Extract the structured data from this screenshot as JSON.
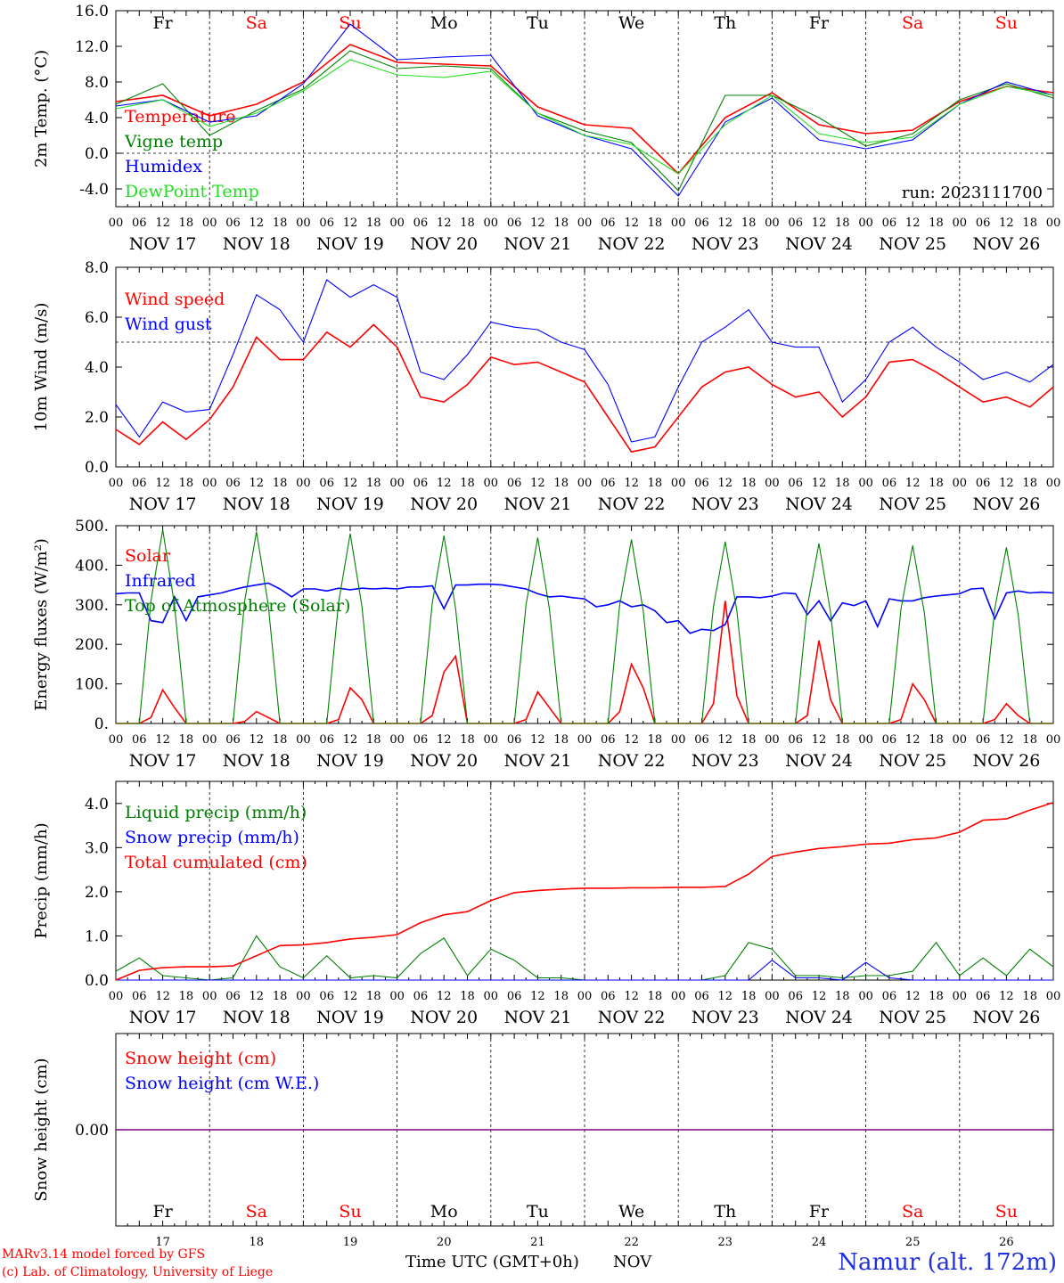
{
  "colors": {
    "red": "#ff0000",
    "green": "#008000",
    "blue": "#0000ff",
    "lightgreen": "#22dd22",
    "purple": "#800080",
    "weekend": "#ff0000",
    "weekday": "#000000"
  },
  "days": [
    {
      "dow": "Fr",
      "dom": "17",
      "date": "NOV 17",
      "weekend": false
    },
    {
      "dow": "Sa",
      "dom": "18",
      "date": "NOV 18",
      "weekend": true
    },
    {
      "dow": "Su",
      "dom": "19",
      "date": "NOV 19",
      "weekend": true
    },
    {
      "dow": "Mo",
      "dom": "20",
      "date": "NOV 20",
      "weekend": false
    },
    {
      "dow": "Tu",
      "dom": "21",
      "date": "NOV 21",
      "weekend": false
    },
    {
      "dow": "We",
      "dom": "22",
      "date": "NOV 22",
      "weekend": false
    },
    {
      "dow": "Th",
      "dom": "23",
      "date": "NOV 23",
      "weekend": false
    },
    {
      "dow": "Fr",
      "dom": "24",
      "date": "NOV 24",
      "weekend": false
    },
    {
      "dow": "Sa",
      "dom": "25",
      "date": "NOV 25",
      "weekend": true
    },
    {
      "dow": "Su",
      "dom": "26",
      "date": "NOV 26",
      "weekend": true
    }
  ],
  "hour_labels": [
    "00",
    "06",
    "12",
    "18"
  ],
  "footer": {
    "credit_line1": "MARv3.14 model forced by GFS",
    "credit_line2": "(c) Lab. of Climatology, University of Liege",
    "x_title": "Time UTC (GMT+0h)",
    "x_unit": "NOV",
    "station": "Namur (alt. 172m)"
  },
  "chart_data": [
    {
      "type": "line",
      "ylabel": "2m Temp. (°C)",
      "ylim": [
        -6,
        16
      ],
      "yticks": [
        -4,
        0,
        4,
        8,
        12,
        16
      ],
      "ytick_labels": [
        "-4.0",
        "0.0",
        "4.0",
        "8.0",
        "12.0",
        "16.0"
      ],
      "ref_line": 0,
      "show_day_names": true,
      "annotation": "run: 2023111700",
      "x_hours": [
        0,
        12,
        24,
        36,
        48,
        60,
        72,
        84,
        96,
        108,
        120,
        132,
        144,
        156,
        168,
        180,
        192,
        204,
        216,
        228,
        240
      ],
      "series": [
        {
          "name": "Temperature",
          "color": "red",
          "values": [
            5.8,
            6.5,
            4.2,
            5.5,
            8.0,
            12.2,
            10.2,
            10.0,
            9.8,
            5.2,
            3.2,
            2.8,
            -2.3,
            4.0,
            6.8,
            3.2,
            2.2,
            2.6,
            5.8,
            7.5,
            6.8
          ]
        },
        {
          "name": "Vigne temp",
          "color": "green",
          "values": [
            5.5,
            7.8,
            2.0,
            4.8,
            7.2,
            11.5,
            9.5,
            9.8,
            9.5,
            4.5,
            2.5,
            1.2,
            -4.2,
            6.5,
            6.5,
            4.0,
            0.8,
            2.2,
            6.0,
            7.8,
            6.2
          ]
        },
        {
          "name": "Humidex",
          "color": "blue",
          "values": [
            5.3,
            6.0,
            3.5,
            4.2,
            7.8,
            14.5,
            10.5,
            10.8,
            11.0,
            4.2,
            2.0,
            0.5,
            -4.8,
            3.5,
            6.2,
            1.5,
            0.5,
            1.5,
            5.5,
            8.0,
            6.5
          ]
        },
        {
          "name": "DewPoint Temp",
          "color": "lightgreen",
          "values": [
            5.0,
            6.0,
            3.0,
            4.5,
            7.0,
            10.5,
            8.8,
            8.5,
            9.2,
            4.5,
            2.0,
            1.0,
            -2.3,
            3.2,
            6.5,
            2.2,
            1.2,
            1.8,
            5.5,
            7.5,
            6.5
          ]
        }
      ]
    },
    {
      "type": "line",
      "ylabel": "10m Wind (m/s)",
      "ylim": [
        0,
        8
      ],
      "yticks": [
        0,
        2,
        4,
        6,
        8
      ],
      "ytick_labels": [
        "0.0",
        "2.0",
        "4.0",
        "6.0",
        "8.0"
      ],
      "ref_line": 5,
      "show_day_names": false,
      "annotation": "",
      "x_hours": [
        0,
        6,
        12,
        18,
        24,
        30,
        36,
        42,
        48,
        54,
        60,
        66,
        72,
        78,
        84,
        90,
        96,
        102,
        108,
        114,
        120,
        126,
        132,
        138,
        144,
        150,
        156,
        162,
        168,
        174,
        180,
        186,
        192,
        198,
        204,
        210,
        216,
        222,
        228,
        234,
        240
      ],
      "series": [
        {
          "name": "Wind speed",
          "color": "red",
          "values": [
            1.5,
            0.9,
            1.8,
            1.1,
            1.9,
            3.2,
            5.2,
            4.3,
            4.3,
            5.4,
            4.8,
            5.7,
            4.8,
            2.8,
            2.6,
            3.3,
            4.4,
            4.1,
            4.2,
            3.8,
            3.4,
            2.0,
            0.6,
            0.8,
            2.0,
            3.2,
            3.8,
            4.0,
            3.3,
            2.8,
            3.0,
            2.0,
            2.8,
            4.2,
            4.3,
            3.8,
            3.2,
            2.6,
            2.8,
            2.4,
            3.2
          ]
        },
        {
          "name": "Wind gust",
          "color": "blue",
          "values": [
            2.5,
            1.2,
            2.6,
            2.2,
            2.3,
            4.5,
            6.9,
            6.3,
            5.0,
            7.5,
            6.8,
            7.3,
            6.8,
            3.8,
            3.5,
            4.5,
            5.8,
            5.6,
            5.5,
            5.0,
            4.7,
            3.3,
            1.0,
            1.2,
            3.2,
            5.0,
            5.6,
            6.3,
            5.0,
            4.8,
            4.8,
            2.6,
            3.5,
            5.0,
            5.6,
            4.8,
            4.2,
            3.5,
            3.8,
            3.4,
            4.1
          ]
        }
      ]
    },
    {
      "type": "line",
      "ylabel": "Energy fluxes (W/m²)",
      "ylim": [
        0,
        500
      ],
      "yticks": [
        0,
        100,
        200,
        300,
        400,
        500
      ],
      "ytick_labels": [
        "0.",
        "100.",
        "200.",
        "300.",
        "400.",
        "500."
      ],
      "ref_line": null,
      "show_day_names": false,
      "annotation": "",
      "x_hours": [
        0,
        3,
        6,
        9,
        12,
        15,
        18,
        21,
        24,
        27,
        30,
        33,
        36,
        39,
        42,
        45,
        48,
        51,
        54,
        57,
        60,
        63,
        66,
        69,
        72,
        75,
        78,
        81,
        84,
        87,
        90,
        93,
        96,
        99,
        102,
        105,
        108,
        111,
        114,
        117,
        120,
        123,
        126,
        129,
        132,
        135,
        138,
        141,
        144,
        147,
        150,
        153,
        156,
        159,
        162,
        165,
        168,
        171,
        174,
        177,
        180,
        183,
        186,
        189,
        192,
        195,
        198,
        201,
        204,
        207,
        210,
        213,
        216,
        219,
        222,
        225,
        228,
        231,
        234,
        237,
        240
      ],
      "series": [
        {
          "name": "Solar",
          "color": "red",
          "values": [
            0,
            0,
            0,
            15,
            85,
            40,
            0,
            0,
            0,
            0,
            0,
            5,
            30,
            15,
            0,
            0,
            0,
            0,
            0,
            10,
            90,
            60,
            0,
            0,
            0,
            0,
            0,
            20,
            130,
            170,
            0,
            0,
            0,
            0,
            0,
            10,
            80,
            40,
            0,
            0,
            0,
            0,
            0,
            30,
            150,
            90,
            0,
            0,
            0,
            0,
            0,
            50,
            310,
            70,
            0,
            0,
            0,
            0,
            0,
            20,
            210,
            60,
            0,
            0,
            0,
            0,
            0,
            10,
            100,
            60,
            0,
            0,
            0,
            0,
            0,
            10,
            50,
            20,
            0,
            0,
            0
          ]
        },
        {
          "name": "Infrared",
          "color": "blue",
          "values": [
            328,
            330,
            330,
            260,
            255,
            320,
            260,
            320,
            325,
            330,
            338,
            345,
            350,
            355,
            340,
            320,
            340,
            340,
            335,
            342,
            338,
            342,
            340,
            342,
            340,
            345,
            345,
            348,
            290,
            350,
            350,
            352,
            352,
            350,
            345,
            340,
            328,
            320,
            322,
            318,
            315,
            295,
            300,
            310,
            295,
            300,
            285,
            255,
            260,
            228,
            238,
            235,
            250,
            320,
            320,
            318,
            322,
            330,
            328,
            275,
            310,
            260,
            305,
            298,
            310,
            245,
            315,
            310,
            310,
            318,
            322,
            325,
            328,
            340,
            342,
            265,
            330,
            335,
            330,
            332,
            330
          ]
        },
        {
          "name": "Top of Atmosphere (Solar)",
          "color": "green",
          "values": [
            0,
            0,
            0,
            310,
            490,
            300,
            0,
            0,
            0,
            0,
            0,
            310,
            485,
            300,
            0,
            0,
            0,
            0,
            0,
            305,
            480,
            295,
            0,
            0,
            0,
            0,
            0,
            305,
            475,
            290,
            0,
            0,
            0,
            0,
            0,
            300,
            470,
            290,
            0,
            0,
            0,
            0,
            0,
            300,
            465,
            285,
            0,
            0,
            0,
            0,
            0,
            295,
            460,
            285,
            0,
            0,
            0,
            0,
            0,
            295,
            455,
            280,
            0,
            0,
            0,
            0,
            0,
            290,
            450,
            280,
            0,
            0,
            0,
            0,
            0,
            290,
            445,
            275,
            0,
            0,
            0
          ]
        }
      ]
    },
    {
      "type": "line",
      "ylabel": "Precip (mm/h)",
      "ylim": [
        0,
        4.5
      ],
      "yticks": [
        0,
        1,
        2,
        3,
        4
      ],
      "ytick_labels": [
        "0.0",
        "1.0",
        "2.0",
        "3.0",
        "4.0"
      ],
      "ref_line": null,
      "show_day_names": false,
      "annotation": "",
      "x_hours": [
        0,
        6,
        12,
        18,
        24,
        30,
        36,
        42,
        48,
        54,
        60,
        66,
        72,
        78,
        84,
        90,
        96,
        102,
        108,
        114,
        120,
        126,
        132,
        138,
        144,
        150,
        156,
        162,
        168,
        174,
        180,
        186,
        192,
        198,
        204,
        210,
        216,
        222,
        228,
        234,
        240
      ],
      "series": [
        {
          "name": "Liquid precip (mm/h)",
          "color": "green",
          "values": [
            0.2,
            0.5,
            0.1,
            0.05,
            0,
            0.05,
            1.0,
            0.3,
            0.05,
            0.55,
            0.05,
            0.1,
            0.05,
            0.6,
            0.95,
            0.1,
            0.7,
            0.45,
            0.05,
            0.05,
            0,
            0,
            0,
            0,
            0,
            0,
            0.1,
            0.85,
            0.7,
            0.1,
            0.1,
            0.05,
            0.1,
            0.1,
            0.2,
            0.85,
            0.1,
            0.5,
            0.1,
            0.7,
            0.3
          ]
        },
        {
          "name": "Snow precip (mm/h)",
          "color": "blue",
          "values": [
            0,
            0,
            0,
            0,
            0,
            0,
            0,
            0,
            0,
            0,
            0,
            0,
            0,
            0,
            0,
            0,
            0,
            0,
            0,
            0,
            0,
            0,
            0,
            0,
            0,
            0,
            0,
            0,
            0.45,
            0.05,
            0.05,
            0,
            0.4,
            0.05,
            0,
            0,
            0,
            0,
            0,
            0,
            0
          ]
        },
        {
          "name": "Total cumulated (cm)",
          "color": "red",
          "values": [
            0.0,
            0.22,
            0.28,
            0.3,
            0.3,
            0.32,
            0.55,
            0.78,
            0.8,
            0.85,
            0.93,
            0.97,
            1.03,
            1.3,
            1.48,
            1.55,
            1.8,
            1.98,
            2.03,
            2.06,
            2.08,
            2.08,
            2.09,
            2.09,
            2.1,
            2.1,
            2.12,
            2.4,
            2.8,
            2.9,
            2.98,
            3.02,
            3.08,
            3.1,
            3.18,
            3.22,
            3.35,
            3.62,
            3.65,
            3.85,
            4.02
          ]
        }
      ]
    },
    {
      "type": "line",
      "ylabel": "Snow height (cm)",
      "ylim": [
        -1,
        1
      ],
      "yticks": [
        0
      ],
      "ytick_labels": [
        "0.00"
      ],
      "ref_line": null,
      "show_day_names": false,
      "annotation": "",
      "x_hours": [
        0,
        240
      ],
      "series": [
        {
          "name": "Snow height (cm)",
          "color": "red",
          "values": [
            0,
            0
          ]
        },
        {
          "name": "Snow height (cm W.E.)",
          "color": "blue",
          "values": [
            0,
            0
          ]
        }
      ]
    }
  ]
}
